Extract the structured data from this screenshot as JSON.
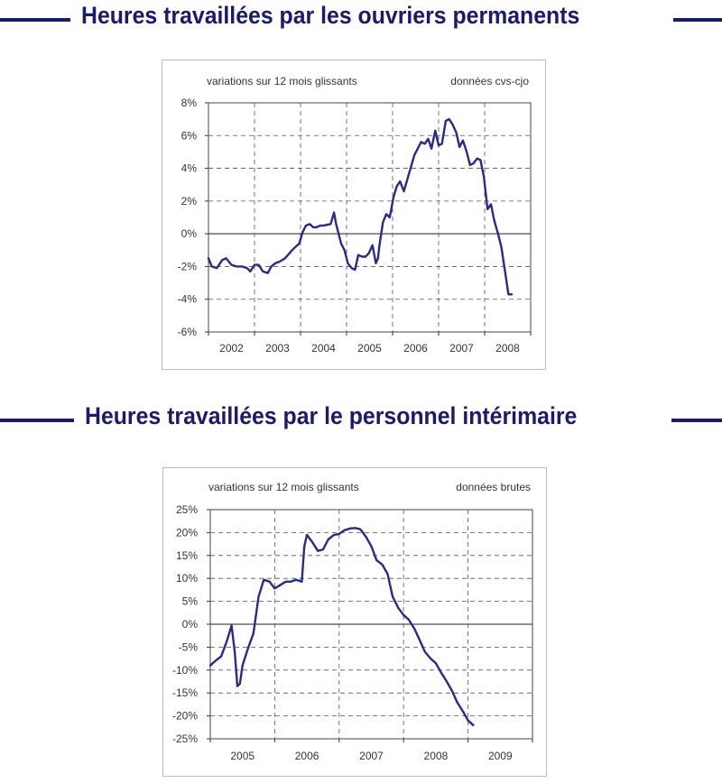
{
  "titles": {
    "top": "Heures travaillées par les ouvriers permanents",
    "bottom": "Heures travaillées par le personnel intérimaire"
  },
  "colors": {
    "title": "#1a1a6e",
    "series": "#2a2a8c",
    "axis": "#333333",
    "grid": "#555555",
    "frame": "#b9b9e0"
  },
  "chart_data": [
    {
      "type": "line",
      "annotations": {
        "left": "variations sur 12 mois glissants",
        "right": "données cvs-cjo"
      },
      "y_ticks": [
        "8%",
        "6%",
        "4%",
        "2%",
        "0%",
        "-2%",
        "-4%",
        "-6%"
      ],
      "ylim": [
        -6,
        8
      ],
      "x_categories": [
        "2002",
        "2003",
        "2004",
        "2005",
        "2006",
        "2007",
        "2008"
      ],
      "xlim": [
        2001.5,
        2009.2
      ],
      "grid": true,
      "series": [
        {
          "x": [
            2001.5,
            2001.58,
            2001.7,
            2001.83,
            2001.92,
            2002.05,
            2002.17,
            2002.3,
            2002.42,
            2002.5,
            2002.6,
            2002.7,
            2002.8,
            2002.92,
            2003.0,
            2003.1,
            2003.2,
            2003.33,
            2003.5,
            2003.58,
            2003.67,
            2003.75,
            2003.83,
            2003.92,
            2004.0,
            2004.08,
            2004.17,
            2004.25,
            2004.42,
            2004.5,
            2004.55,
            2004.67,
            2004.75,
            2004.83,
            2004.92,
            2005.0,
            2005.08,
            2005.17,
            2005.25,
            2005.33,
            2005.42,
            2005.5,
            2005.55,
            2005.58,
            2005.67,
            2005.75,
            2005.83,
            2005.92,
            2006.0,
            2006.08,
            2006.17,
            2006.25,
            2006.33,
            2006.42,
            2006.5,
            2006.58,
            2006.67,
            2006.75,
            2006.83,
            2006.92,
            2007.0,
            2007.08,
            2007.17,
            2007.25,
            2007.33,
            2007.42,
            2007.5,
            2007.58,
            2007.67,
            2007.75,
            2007.83,
            2007.92,
            2008.0,
            2008.08,
            2008.17,
            2008.25,
            2008.33,
            2008.42,
            2008.5,
            2008.58,
            2008.67,
            2008.75
          ],
          "y": [
            -1.5,
            -2.0,
            -2.1,
            -1.6,
            -1.5,
            -1.9,
            -2.0,
            -2.0,
            -2.1,
            -2.3,
            -1.9,
            -1.9,
            -2.3,
            -2.4,
            -2.0,
            -1.8,
            -1.7,
            -1.5,
            -1.0,
            -0.8,
            -0.6,
            0.1,
            0.5,
            0.6,
            0.4,
            0.4,
            0.5,
            0.5,
            0.6,
            1.3,
            0.6,
            -0.6,
            -1.0,
            -1.8,
            -2.1,
            -2.2,
            -1.3,
            -1.4,
            -1.4,
            -1.2,
            -0.7,
            -1.8,
            -1.5,
            -0.8,
            0.7,
            1.2,
            1.0,
            2.2,
            2.9,
            3.2,
            2.6,
            3.3,
            4.0,
            4.8,
            5.2,
            5.6,
            5.5,
            5.8,
            5.2,
            6.3,
            5.4,
            5.5,
            6.9,
            7.0,
            6.7,
            6.2,
            5.3,
            5.7,
            5.0,
            4.2,
            4.3,
            4.6,
            4.5,
            3.5,
            1.5,
            1.8,
            0.8,
            0.0,
            -0.8,
            -2.2,
            -3.7,
            -3.7
          ]
        }
      ]
    },
    {
      "type": "line",
      "annotations": {
        "left": "variations sur 12 mois glissants",
        "right": "données brutes"
      },
      "y_ticks": [
        "25%",
        "20%",
        "15%",
        "10%",
        "5%",
        "0%",
        "-5%",
        "-10%",
        "-15%",
        "-20%",
        "-25%"
      ],
      "ylim": [
        -25,
        25
      ],
      "x_categories": [
        "2005",
        "2006",
        "2007",
        "2008",
        "2009"
      ],
      "xlim": [
        2004.5,
        2009.5
      ],
      "grid": true,
      "series": [
        {
          "x": [
            2004.5,
            2004.58,
            2004.67,
            2004.75,
            2004.83,
            2004.88,
            2004.92,
            2004.96,
            2005.0,
            2005.08,
            2005.17,
            2005.25,
            2005.33,
            2005.42,
            2005.5,
            2005.58,
            2005.67,
            2005.75,
            2005.83,
            2005.92,
            2005.96,
            2006.0,
            2006.08,
            2006.17,
            2006.25,
            2006.33,
            2006.42,
            2006.5,
            2006.58,
            2006.67,
            2006.75,
            2006.83,
            2006.92,
            2007.0,
            2007.08,
            2007.17,
            2007.25,
            2007.33,
            2007.42,
            2007.5,
            2007.58,
            2007.67,
            2007.75,
            2007.83,
            2007.92,
            2008.0,
            2008.08,
            2008.17,
            2008.25,
            2008.33,
            2008.42,
            2008.5,
            2008.58
          ],
          "y": [
            -9.0,
            -8.0,
            -7.0,
            -4.0,
            -0.3,
            -6.0,
            -13.5,
            -13.0,
            -9.0,
            -5.5,
            -2.0,
            6.0,
            9.7,
            9.3,
            7.8,
            8.5,
            9.3,
            9.3,
            9.7,
            9.3,
            17.0,
            19.5,
            18.0,
            16.0,
            16.3,
            18.5,
            19.5,
            19.7,
            20.5,
            20.9,
            21.0,
            20.7,
            19.0,
            17.0,
            14.0,
            13.0,
            11.0,
            6.0,
            3.5,
            2.0,
            1.0,
            -1.0,
            -3.5,
            -6.0,
            -7.5,
            -8.5,
            -10.5,
            -12.5,
            -14.5,
            -17.0,
            -19.0,
            -21.0,
            -22.0
          ]
        }
      ]
    }
  ]
}
